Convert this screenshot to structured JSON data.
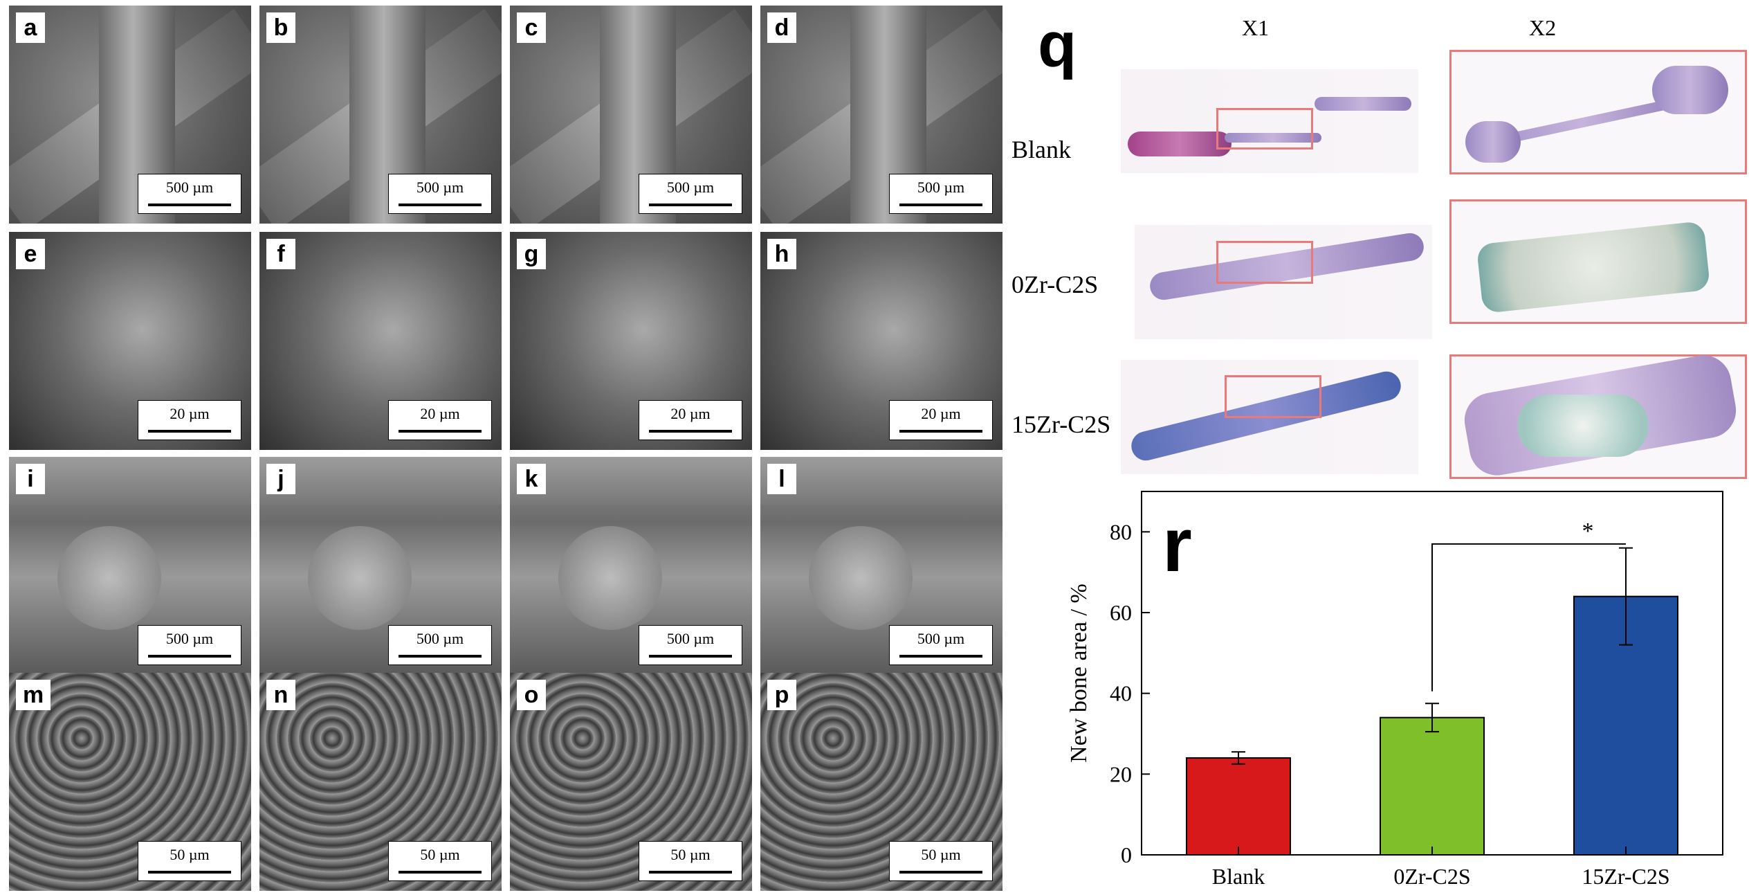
{
  "sem_panels": [
    {
      "letter": "a",
      "scale": "500 µm"
    },
    {
      "letter": "b",
      "scale": "500 µm"
    },
    {
      "letter": "c",
      "scale": "500 µm"
    },
    {
      "letter": "d",
      "scale": "500 µm"
    },
    {
      "letter": "e",
      "scale": "20 µm"
    },
    {
      "letter": "f",
      "scale": "20 µm"
    },
    {
      "letter": "g",
      "scale": "20 µm"
    },
    {
      "letter": "h",
      "scale": "20 µm"
    },
    {
      "letter": "i",
      "scale": "500 µm"
    },
    {
      "letter": "j",
      "scale": "500 µm"
    },
    {
      "letter": "k",
      "scale": "500 µm"
    },
    {
      "letter": "l",
      "scale": "500 µm"
    },
    {
      "letter": "m",
      "scale": "50 µm"
    },
    {
      "letter": "n",
      "scale": "50 µm"
    },
    {
      "letter": "o",
      "scale": "50 µm"
    },
    {
      "letter": "p",
      "scale": "50 µm"
    }
  ],
  "histology": {
    "letter": "q",
    "columns": [
      "X1",
      "X2"
    ],
    "rows": [
      "Blank",
      "0Zr-C2S",
      "15Zr-C2S"
    ]
  },
  "chart_data": {
    "type": "bar",
    "panel_letter": "r",
    "categories": [
      "Blank",
      "0Zr-C2S",
      "15Zr-C2S"
    ],
    "values": [
      24,
      34,
      64
    ],
    "errors": [
      1.5,
      3.5,
      12
    ],
    "colors": [
      "#d7191c",
      "#7fbf2a",
      "#1f4e9e"
    ],
    "ylabel": "New bone area / %",
    "ylim": [
      0,
      90
    ],
    "yticks": [
      0,
      20,
      40,
      60,
      80
    ],
    "significance": {
      "from": "0Zr-C2S",
      "to": "15Zr-C2S",
      "label": "*"
    }
  }
}
